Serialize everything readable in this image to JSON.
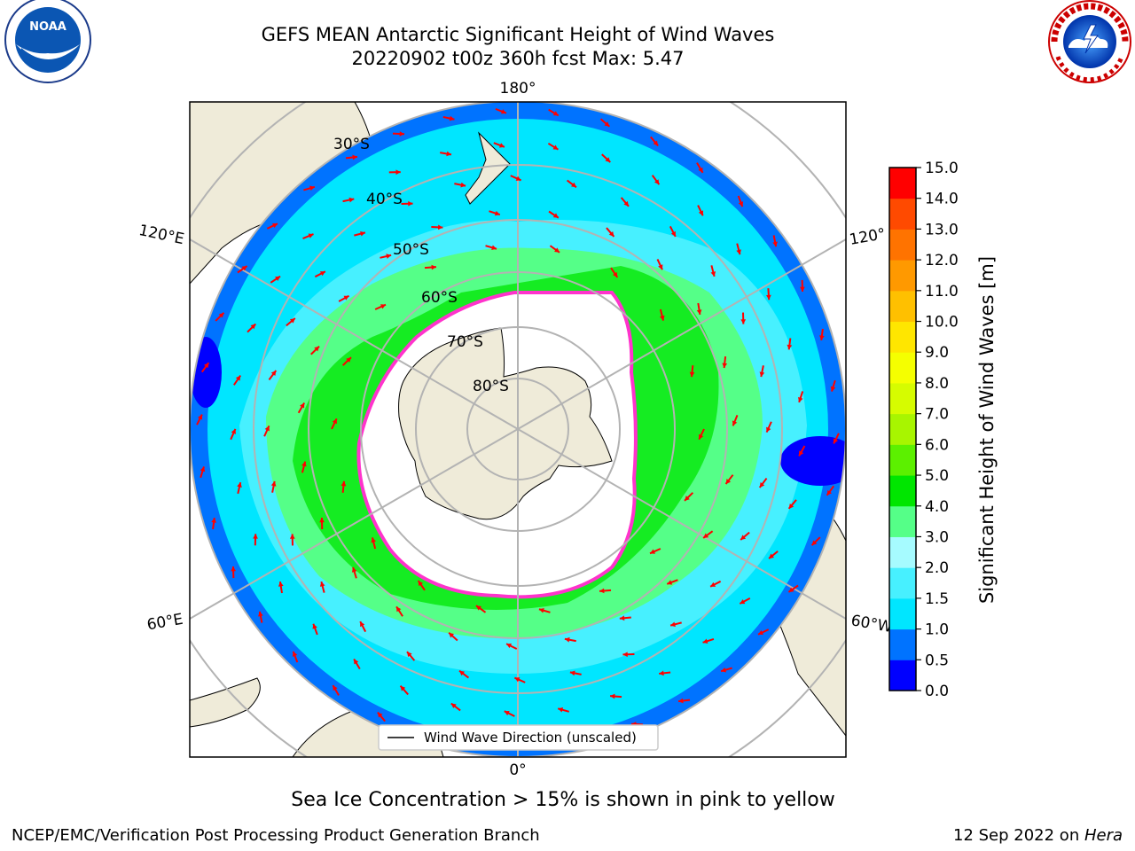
{
  "header": {
    "title_line1": "GEFS MEAN Antarctic Significant Height of Wind Waves",
    "title_line2": "20220902 t00z 360h fcst   Max: 5.47"
  },
  "logos": {
    "left": {
      "name": "noaa-logo",
      "text": "NOAA"
    },
    "right": {
      "name": "national-weather-service-logo",
      "text": "NATIONAL WEATHER SERVICE"
    }
  },
  "map": {
    "longitude_labels": {
      "top": "180°",
      "bottom": "0°",
      "upper_left": "120°E",
      "upper_right": "120°",
      "lower_left": "60°E",
      "lower_right": "60°W"
    },
    "latitude_labels": [
      "30°S",
      "40°S",
      "50°S",
      "60°S",
      "70°S",
      "80°S"
    ],
    "legend_label": "Wind Wave Direction (unscaled)",
    "colors": {
      "land": "#efebd9",
      "ice": "#ffffff",
      "arrow": "#ff0000",
      "ice_edge": "#ff33cc"
    }
  },
  "colorbar": {
    "label": "Significant Height of Wind Waves [m]",
    "ticks": [
      "0.0",
      "0.5",
      "1.0",
      "1.5",
      "2.0",
      "3.0",
      "4.0",
      "5.0",
      "6.0",
      "7.0",
      "8.0",
      "9.0",
      "10.0",
      "11.0",
      "12.0",
      "13.0",
      "14.0",
      "15.0"
    ],
    "colors": [
      "#0000ff",
      "#0073ff",
      "#00e6ff",
      "#47f0ff",
      "#a6fbff",
      "#55ff88",
      "#00e600",
      "#5cf000",
      "#a8f500",
      "#d6fc00",
      "#f5ff00",
      "#ffe600",
      "#ffc000",
      "#ff9900",
      "#ff7300",
      "#ff4a00",
      "#ff0000"
    ]
  },
  "footer": {
    "note": "Sea Ice Concentration > 15% is shown in pink to yellow",
    "left": "NCEP/EMC/Verification Post Processing Product Generation Branch",
    "right_prefix": "12 Sep 2022 on ",
    "right_host": "Hera"
  }
}
